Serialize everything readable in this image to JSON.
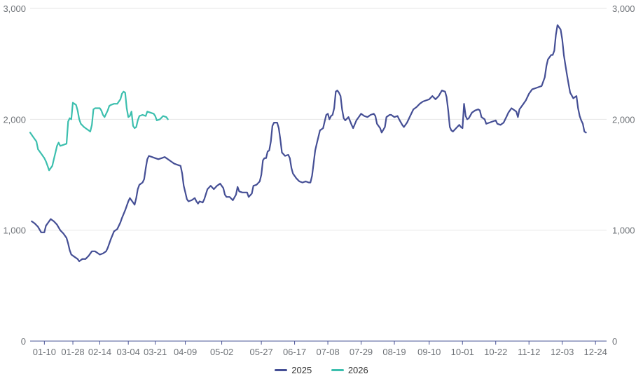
{
  "chart_data": {
    "type": "line",
    "title": "",
    "xlabel": "",
    "ylabel": "",
    "ylim": [
      0,
      3000
    ],
    "y_ticks": [
      "0",
      "1,000",
      "2,000",
      "3,000"
    ],
    "y_tick_values": [
      0,
      1000,
      2000,
      3000
    ],
    "dual_y_axis": true,
    "grid": true,
    "legend_position": "bottom",
    "x_ticks": [
      "01-10",
      "01-28",
      "02-14",
      "03-04",
      "03-21",
      "04-09",
      "05-02",
      "05-27",
      "06-17",
      "07-08",
      "07-29",
      "08-19",
      "09-10",
      "10-01",
      "10-22",
      "11-12",
      "12-03",
      "12-24"
    ],
    "x_days": [
      10,
      28,
      45,
      63,
      80,
      99,
      122,
      147,
      168,
      189,
      210,
      231,
      253,
      274,
      295,
      316,
      337,
      358
    ],
    "x_range_days": [
      1,
      365
    ],
    "series": [
      {
        "name": "2025",
        "color": "#454f95",
        "points": [
          [
            2,
            1080
          ],
          [
            4,
            1060
          ],
          [
            6,
            1030
          ],
          [
            8,
            980
          ],
          [
            10,
            980
          ],
          [
            11,
            1040
          ],
          [
            13,
            1080
          ],
          [
            14,
            1100
          ],
          [
            16,
            1080
          ],
          [
            18,
            1050
          ],
          [
            20,
            1000
          ],
          [
            22,
            970
          ],
          [
            24,
            930
          ],
          [
            25,
            880
          ],
          [
            26,
            820
          ],
          [
            27,
            780
          ],
          [
            29,
            760
          ],
          [
            31,
            740
          ],
          [
            32,
            720
          ],
          [
            34,
            740
          ],
          [
            36,
            740
          ],
          [
            38,
            770
          ],
          [
            40,
            810
          ],
          [
            42,
            810
          ],
          [
            44,
            790
          ],
          [
            45,
            780
          ],
          [
            47,
            790
          ],
          [
            49,
            810
          ],
          [
            50,
            840
          ],
          [
            52,
            920
          ],
          [
            54,
            990
          ],
          [
            56,
            1010
          ],
          [
            58,
            1070
          ],
          [
            59,
            1110
          ],
          [
            61,
            1180
          ],
          [
            63,
            1260
          ],
          [
            64,
            1290
          ],
          [
            66,
            1250
          ],
          [
            67,
            1230
          ],
          [
            68,
            1290
          ],
          [
            69,
            1370
          ],
          [
            70,
            1410
          ],
          [
            72,
            1430
          ],
          [
            73,
            1460
          ],
          [
            74,
            1560
          ],
          [
            75,
            1640
          ],
          [
            76,
            1670
          ],
          [
            78,
            1660
          ],
          [
            80,
            1650
          ],
          [
            82,
            1640
          ],
          [
            84,
            1650
          ],
          [
            86,
            1660
          ],
          [
            88,
            1640
          ],
          [
            90,
            1620
          ],
          [
            92,
            1600
          ],
          [
            94,
            1590
          ],
          [
            96,
            1580
          ],
          [
            97,
            1510
          ],
          [
            98,
            1400
          ],
          [
            99,
            1340
          ],
          [
            100,
            1280
          ],
          [
            101,
            1260
          ],
          [
            103,
            1270
          ],
          [
            105,
            1290
          ],
          [
            106,
            1260
          ],
          [
            107,
            1240
          ],
          [
            108,
            1260
          ],
          [
            110,
            1250
          ],
          [
            111,
            1280
          ],
          [
            113,
            1370
          ],
          [
            115,
            1400
          ],
          [
            117,
            1370
          ],
          [
            119,
            1400
          ],
          [
            121,
            1420
          ],
          [
            123,
            1380
          ],
          [
            124,
            1320
          ],
          [
            125,
            1300
          ],
          [
            127,
            1300
          ],
          [
            129,
            1270
          ],
          [
            131,
            1320
          ],
          [
            132,
            1390
          ],
          [
            133,
            1350
          ],
          [
            135,
            1340
          ],
          [
            137,
            1340
          ],
          [
            138,
            1340
          ],
          [
            139,
            1300
          ],
          [
            141,
            1330
          ],
          [
            142,
            1400
          ],
          [
            144,
            1410
          ],
          [
            146,
            1440
          ],
          [
            147,
            1500
          ],
          [
            148,
            1630
          ],
          [
            149,
            1650
          ],
          [
            150,
            1650
          ],
          [
            151,
            1710
          ],
          [
            152,
            1720
          ],
          [
            153,
            1800
          ],
          [
            154,
            1940
          ],
          [
            155,
            1970
          ],
          [
            157,
            1970
          ],
          [
            158,
            1920
          ],
          [
            159,
            1820
          ],
          [
            160,
            1700
          ],
          [
            162,
            1670
          ],
          [
            164,
            1680
          ],
          [
            165,
            1650
          ],
          [
            166,
            1560
          ],
          [
            167,
            1510
          ],
          [
            169,
            1470
          ],
          [
            171,
            1440
          ],
          [
            173,
            1430
          ],
          [
            175,
            1440
          ],
          [
            177,
            1430
          ],
          [
            178,
            1430
          ],
          [
            179,
            1490
          ],
          [
            180,
            1600
          ],
          [
            181,
            1720
          ],
          [
            182,
            1780
          ],
          [
            183,
            1840
          ],
          [
            184,
            1900
          ],
          [
            186,
            1920
          ],
          [
            187,
            1980
          ],
          [
            188,
            2040
          ],
          [
            189,
            2050
          ],
          [
            190,
            2000
          ],
          [
            191,
            2030
          ],
          [
            192,
            2040
          ],
          [
            193,
            2100
          ],
          [
            194,
            2250
          ],
          [
            195,
            2260
          ],
          [
            196,
            2240
          ],
          [
            197,
            2210
          ],
          [
            198,
            2090
          ],
          [
            199,
            2010
          ],
          [
            200,
            1990
          ],
          [
            202,
            2020
          ],
          [
            204,
            1950
          ],
          [
            205,
            1920
          ],
          [
            207,
            1990
          ],
          [
            209,
            2030
          ],
          [
            210,
            2050
          ],
          [
            212,
            2030
          ],
          [
            214,
            2020
          ],
          [
            216,
            2040
          ],
          [
            218,
            2050
          ],
          [
            219,
            2030
          ],
          [
            220,
            1960
          ],
          [
            222,
            1920
          ],
          [
            223,
            1880
          ],
          [
            225,
            1930
          ],
          [
            226,
            2020
          ],
          [
            228,
            2040
          ],
          [
            229,
            2040
          ],
          [
            231,
            2020
          ],
          [
            233,
            2030
          ],
          [
            234,
            2000
          ],
          [
            236,
            1950
          ],
          [
            237,
            1930
          ],
          [
            239,
            1970
          ],
          [
            241,
            2030
          ],
          [
            243,
            2090
          ],
          [
            245,
            2110
          ],
          [
            247,
            2140
          ],
          [
            249,
            2160
          ],
          [
            251,
            2170
          ],
          [
            253,
            2180
          ],
          [
            255,
            2210
          ],
          [
            257,
            2180
          ],
          [
            259,
            2210
          ],
          [
            261,
            2260
          ],
          [
            263,
            2250
          ],
          [
            264,
            2200
          ],
          [
            265,
            2080
          ],
          [
            266,
            1930
          ],
          [
            267,
            1900
          ],
          [
            268,
            1890
          ],
          [
            270,
            1920
          ],
          [
            272,
            1950
          ],
          [
            273,
            1930
          ],
          [
            274,
            1920
          ],
          [
            275,
            2140
          ],
          [
            276,
            2030
          ],
          [
            277,
            2000
          ],
          [
            278,
            2010
          ],
          [
            280,
            2060
          ],
          [
            282,
            2080
          ],
          [
            284,
            2090
          ],
          [
            285,
            2080
          ],
          [
            286,
            2020
          ],
          [
            288,
            2000
          ],
          [
            289,
            1960
          ],
          [
            291,
            1970
          ],
          [
            293,
            1980
          ],
          [
            295,
            1990
          ],
          [
            296,
            1960
          ],
          [
            298,
            1950
          ],
          [
            300,
            1970
          ],
          [
            302,
            2030
          ],
          [
            303,
            2060
          ],
          [
            305,
            2100
          ],
          [
            306,
            2090
          ],
          [
            308,
            2070
          ],
          [
            309,
            2020
          ],
          [
            310,
            2090
          ],
          [
            312,
            2130
          ],
          [
            314,
            2170
          ],
          [
            316,
            2230
          ],
          [
            318,
            2270
          ],
          [
            320,
            2280
          ],
          [
            322,
            2290
          ],
          [
            324,
            2300
          ],
          [
            326,
            2380
          ],
          [
            327,
            2480
          ],
          [
            328,
            2540
          ],
          [
            330,
            2580
          ],
          [
            331,
            2580
          ],
          [
            332,
            2620
          ],
          [
            333,
            2760
          ],
          [
            334,
            2850
          ],
          [
            336,
            2810
          ],
          [
            337,
            2720
          ],
          [
            338,
            2580
          ],
          [
            339,
            2490
          ],
          [
            340,
            2400
          ],
          [
            341,
            2320
          ],
          [
            342,
            2240
          ],
          [
            344,
            2190
          ],
          [
            346,
            2210
          ],
          [
            347,
            2100
          ],
          [
            348,
            2030
          ],
          [
            349,
            1990
          ],
          [
            350,
            1960
          ],
          [
            351,
            1890
          ],
          [
            352,
            1880
          ]
        ]
      },
      {
        "name": "2026",
        "color": "#3cbfae",
        "points": [
          [
            1,
            1880
          ],
          [
            3,
            1840
          ],
          [
            5,
            1800
          ],
          [
            6,
            1730
          ],
          [
            8,
            1690
          ],
          [
            10,
            1650
          ],
          [
            11,
            1620
          ],
          [
            12,
            1580
          ],
          [
            13,
            1540
          ],
          [
            15,
            1580
          ],
          [
            16,
            1640
          ],
          [
            17,
            1700
          ],
          [
            18,
            1760
          ],
          [
            19,
            1790
          ],
          [
            20,
            1760
          ],
          [
            22,
            1770
          ],
          [
            24,
            1780
          ],
          [
            25,
            1980
          ],
          [
            26,
            2010
          ],
          [
            27,
            2000
          ],
          [
            28,
            2150
          ],
          [
            30,
            2130
          ],
          [
            31,
            2080
          ],
          [
            32,
            2000
          ],
          [
            33,
            1960
          ],
          [
            35,
            1930
          ],
          [
            37,
            1910
          ],
          [
            39,
            1890
          ],
          [
            40,
            1950
          ],
          [
            41,
            2090
          ],
          [
            42,
            2100
          ],
          [
            44,
            2100
          ],
          [
            45,
            2100
          ],
          [
            46,
            2080
          ],
          [
            47,
            2040
          ],
          [
            48,
            2020
          ],
          [
            50,
            2080
          ],
          [
            51,
            2120
          ],
          [
            52,
            2130
          ],
          [
            54,
            2140
          ],
          [
            56,
            2140
          ],
          [
            58,
            2180
          ],
          [
            59,
            2230
          ],
          [
            60,
            2250
          ],
          [
            61,
            2240
          ],
          [
            62,
            2100
          ],
          [
            63,
            2020
          ],
          [
            64,
            2030
          ],
          [
            65,
            2070
          ],
          [
            66,
            1940
          ],
          [
            67,
            1920
          ],
          [
            68,
            1930
          ],
          [
            69,
            1990
          ],
          [
            70,
            2030
          ],
          [
            72,
            2040
          ],
          [
            74,
            2030
          ],
          [
            75,
            2070
          ],
          [
            77,
            2060
          ],
          [
            79,
            2050
          ],
          [
            80,
            2030
          ],
          [
            81,
            1990
          ],
          [
            83,
            2000
          ],
          [
            85,
            2030
          ],
          [
            87,
            2020
          ],
          [
            88,
            2000
          ]
        ]
      }
    ]
  }
}
